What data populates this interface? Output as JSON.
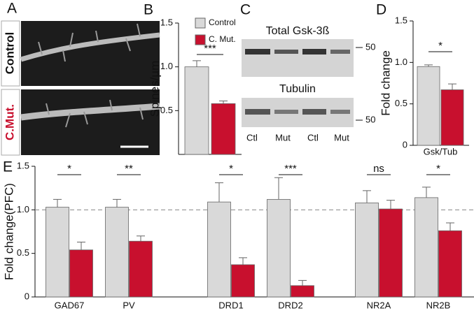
{
  "panels": {
    "A": {
      "label": "A",
      "image_labels": [
        "Control",
        "C.Mut."
      ]
    },
    "C": {
      "label": "C",
      "blots": [
        "Total Gsk-3ß",
        "Tubulin"
      ],
      "lanes": [
        "Ctl",
        "Mut",
        "Ctl",
        "Mut"
      ],
      "marker": "50"
    }
  },
  "chart_data": [
    {
      "type": "bar",
      "panel": "B",
      "ylabel": "Spines/µm",
      "categories": [
        null
      ],
      "series": [
        {
          "name": "Control",
          "color": "#d9d9d9",
          "values": [
            1.0
          ],
          "errors": [
            0.07
          ]
        },
        {
          "name": "C. Mut.",
          "color": "#c8102e",
          "values": [
            0.58
          ],
          "errors": [
            0.03
          ]
        }
      ],
      "annotations": [
        "***"
      ],
      "legend": true,
      "ylim": [
        0,
        1.5
      ],
      "yticks": [
        0.5,
        {
          "value": 1,
          "label": "1.0"
        },
        1.5
      ]
    },
    {
      "type": "bar",
      "panel": "D",
      "ylabel": "Fold change",
      "categories": [
        "Gsk/Tub"
      ],
      "series": [
        {
          "color": "#d9d9d9",
          "values": [
            0.95
          ],
          "errors": [
            0.02
          ]
        },
        {
          "color": "#c8102e",
          "values": [
            0.67
          ],
          "errors": [
            0.07
          ]
        }
      ],
      "annotations": [
        "*"
      ],
      "ylim": [
        0,
        1.5
      ],
      "yticks": [
        0,
        0.5,
        {
          "value": 1,
          "label": "1.0"
        },
        1.5
      ]
    },
    {
      "type": "bar",
      "panel": "E",
      "ylabel": "Fold change(PFC)",
      "categories": [
        "GAD67",
        "PV",
        "DRD1",
        "DRD2",
        "NR2A",
        "NR2B"
      ],
      "series": [
        {
          "color": "#d9d9d9",
          "values": [
            1.03,
            1.03,
            1.09,
            1.12,
            1.08,
            1.14
          ],
          "errors": [
            0.09,
            0.09,
            0.22,
            0.25,
            0.14,
            0.12
          ]
        },
        {
          "color": "#c8102e",
          "values": [
            0.54,
            0.64,
            0.37,
            0.13,
            1.01,
            0.76
          ],
          "errors": [
            0.09,
            0.06,
            0.08,
            0.06,
            0.1,
            0.09
          ]
        }
      ],
      "annotations": [
        "*",
        "**",
        "*",
        "***",
        "ns",
        "*"
      ],
      "reference_line": 1,
      "ylim": [
        0,
        1.5
      ],
      "yticks": [
        0,
        0.5,
        {
          "value": 1,
          "label": "1.0"
        },
        1.5
      ]
    }
  ]
}
